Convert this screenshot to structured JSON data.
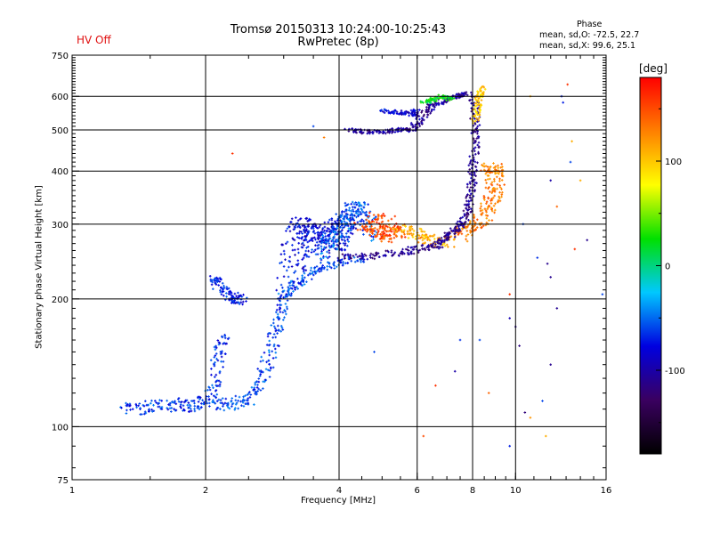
{
  "header": {
    "title_line1": "Tromsø 20150313 10:24:00-10:25:43",
    "title_line2": "RwPretec (8p)",
    "hv_status": "HV Off",
    "stats_heading": "Phase",
    "stats_o": "mean, sd,O: -72.5, 22.7",
    "stats_x": "mean, sd,X:  99.6, 25.1"
  },
  "colorbar": {
    "unit_label": "[deg]",
    "ticks": [
      {
        "value": 100,
        "label": "100"
      },
      {
        "value": 0,
        "label": "0"
      },
      {
        "value": -100,
        "label": "-100"
      }
    ],
    "range": [
      -180,
      180
    ],
    "colors": [
      "#000000",
      "#3a0060",
      "#0000e0",
      "#00c8ff",
      "#00e000",
      "#ffff00",
      "#ff8000",
      "#ff0000"
    ]
  },
  "chart_data": {
    "type": "scatter",
    "title": "Tromsø 20150313 10:24:00-10:25:43",
    "subtitle": "RwPretec (8p)",
    "xlabel": "Frequency [MHz]",
    "ylabel": "Stationary phase Virtual Height [km]",
    "x_scale": "log",
    "y_scale": "log",
    "xlim": [
      1,
      16
    ],
    "ylim": [
      75,
      750
    ],
    "grid": true,
    "x_ticks": [
      {
        "value": 1,
        "label": "1"
      },
      {
        "value": 2,
        "label": "2"
      },
      {
        "value": 4,
        "label": "4"
      },
      {
        "value": 6,
        "label": "6"
      },
      {
        "value": 8,
        "label": "8"
      },
      {
        "value": 10,
        "label": "10"
      },
      {
        "value": 16,
        "label": "16"
      }
    ],
    "x_gridlines": [
      2,
      4,
      6,
      8,
      10
    ],
    "y_ticks": [
      {
        "value": 75,
        "label": "75"
      },
      {
        "value": 100,
        "label": "100"
      },
      {
        "value": 200,
        "label": "200"
      },
      {
        "value": 300,
        "label": "300"
      },
      {
        "value": 400,
        "label": "400"
      },
      {
        "value": 500,
        "label": "500"
      },
      {
        "value": 600,
        "label": "600"
      },
      {
        "value": 750,
        "label": "750"
      }
    ],
    "y_gridlines": [
      100,
      200,
      300,
      400,
      500,
      600
    ],
    "color_by": "phase [deg]",
    "traces": [
      {
        "phase": -65,
        "spread_f": 0.035,
        "spread_h": 4,
        "points": [
          [
            1.3,
            110
          ],
          [
            1.45,
            111
          ],
          [
            1.6,
            112
          ],
          [
            1.75,
            113
          ],
          [
            1.9,
            112
          ],
          [
            2.05,
            115
          ],
          [
            2.1,
            125
          ],
          [
            2.15,
            150
          ],
          [
            2.2,
            165
          ]
        ]
      },
      {
        "phase": -60,
        "spread_f": 0.035,
        "spread_h": 4,
        "points": [
          [
            2.1,
            112
          ],
          [
            2.3,
            113
          ],
          [
            2.5,
            116
          ],
          [
            2.65,
            125
          ],
          [
            2.75,
            140
          ],
          [
            2.85,
            160
          ],
          [
            2.95,
            180
          ],
          [
            3.0,
            200
          ],
          [
            3.1,
            212
          ],
          [
            3.3,
            222
          ],
          [
            3.6,
            235
          ],
          [
            4.0,
            245
          ],
          [
            4.5,
            248
          ]
        ]
      },
      {
        "phase": -78,
        "spread_f": 0.07,
        "spread_h": 12,
        "points": [
          [
            3.1,
            220
          ],
          [
            3.15,
            245
          ],
          [
            3.2,
            270
          ],
          [
            3.25,
            295
          ],
          [
            3.3,
            300
          ],
          [
            3.4,
            280
          ],
          [
            3.5,
            260
          ],
          [
            3.6,
            285
          ],
          [
            3.7,
            300
          ],
          [
            3.8,
            275
          ],
          [
            3.9,
            265
          ],
          [
            4.0,
            285
          ],
          [
            4.1,
            300
          ],
          [
            4.2,
            310
          ]
        ]
      },
      {
        "phase": -55,
        "spread_f": 0.05,
        "spread_h": 12,
        "points": [
          [
            3.6,
            245
          ],
          [
            3.8,
            268
          ],
          [
            4.0,
            282
          ],
          [
            4.1,
            300
          ],
          [
            4.2,
            315
          ],
          [
            4.3,
            328
          ],
          [
            4.45,
            325
          ],
          [
            4.6,
            310
          ],
          [
            4.8,
            282
          ]
        ]
      },
      {
        "phase": 150,
        "spread_f": 0.06,
        "spread_h": 10,
        "points": [
          [
            4.6,
            298
          ],
          [
            4.8,
            290
          ],
          [
            5.0,
            285
          ],
          [
            5.2,
            280
          ],
          [
            5.4,
            290
          ],
          [
            5.0,
            310
          ],
          [
            4.8,
            305
          ]
        ]
      },
      {
        "phase": 110,
        "spread_f": 0.06,
        "spread_h": 8,
        "points": [
          [
            5.5,
            292
          ],
          [
            5.8,
            290
          ],
          [
            6.2,
            280
          ],
          [
            6.6,
            275
          ],
          [
            7.0,
            272
          ]
        ]
      },
      {
        "phase": 130,
        "spread_f": 0.05,
        "spread_h": 8,
        "points": [
          [
            7.4,
            280
          ],
          [
            7.8,
            290
          ],
          [
            8.2,
            300
          ],
          [
            8.6,
            320
          ],
          [
            8.8,
            340
          ],
          [
            9.0,
            360
          ],
          [
            9.0,
            390
          ],
          [
            8.9,
            410
          ],
          [
            8.6,
            400
          ]
        ]
      },
      {
        "phase": -108,
        "spread_f": 0.025,
        "spread_h": 5,
        "points": [
          [
            4.0,
            250
          ],
          [
            4.6,
            252
          ],
          [
            5.2,
            255
          ],
          [
            5.8,
            260
          ],
          [
            6.4,
            265
          ],
          [
            6.8,
            270
          ],
          [
            7.0,
            280
          ],
          [
            7.3,
            290
          ],
          [
            7.6,
            300
          ],
          [
            7.8,
            320
          ],
          [
            7.9,
            345
          ],
          [
            8.0,
            380
          ],
          [
            8.05,
            420
          ],
          [
            8.1,
            480
          ],
          [
            8.1,
            540
          ],
          [
            8.05,
            600
          ]
        ]
      },
      {
        "phase": -105,
        "spread_f": 0.03,
        "spread_h": 5,
        "points": [
          [
            4.2,
            500
          ],
          [
            4.6,
            495
          ],
          [
            5.0,
            495
          ],
          [
            5.4,
            500
          ],
          [
            5.8,
            500
          ],
          [
            6.0,
            520
          ],
          [
            6.3,
            555
          ],
          [
            6.6,
            575
          ],
          [
            7.0,
            590
          ],
          [
            7.4,
            600
          ],
          [
            7.8,
            610
          ]
        ]
      },
      {
        "phase": -85,
        "spread_f": 0.02,
        "spread_h": 6,
        "points": [
          [
            5.0,
            555
          ],
          [
            5.4,
            550
          ],
          [
            5.8,
            545
          ],
          [
            6.0,
            555
          ]
        ]
      },
      {
        "phase": 20,
        "spread_f": 0.02,
        "spread_h": 6,
        "points": [
          [
            6.2,
            580
          ],
          [
            6.5,
            590
          ],
          [
            6.8,
            600
          ],
          [
            7.2,
            590
          ]
        ]
      },
      {
        "phase": 100,
        "spread_f": 0.02,
        "spread_h": 8,
        "points": [
          [
            8.1,
            520
          ],
          [
            8.2,
            560
          ],
          [
            8.3,
            600
          ],
          [
            8.4,
            630
          ]
        ]
      },
      {
        "phase": -70,
        "spread_f": 0.03,
        "spread_h": 6,
        "points": [
          [
            2.05,
            225
          ],
          [
            2.15,
            215
          ],
          [
            2.25,
            205
          ],
          [
            2.35,
            200
          ],
          [
            2.45,
            198
          ]
        ]
      }
    ],
    "scatter_points": [
      [
        2.3,
        440,
        160
      ],
      [
        3.5,
        510,
        -60
      ],
      [
        3.7,
        480,
        130
      ],
      [
        4.8,
        150,
        -60
      ],
      [
        6.2,
        95,
        150
      ],
      [
        6.6,
        125,
        160
      ],
      [
        7.3,
        135,
        -100
      ],
      [
        7.5,
        160,
        -65
      ],
      [
        8.3,
        160,
        -60
      ],
      [
        8.7,
        120,
        140
      ],
      [
        9.7,
        90,
        -70
      ],
      [
        9.7,
        180,
        -95
      ],
      [
        10.0,
        172,
        -110
      ],
      [
        10.2,
        155,
        -115
      ],
      [
        10.5,
        108,
        -118
      ],
      [
        10.8,
        105,
        120
      ],
      [
        11.5,
        115,
        -60
      ],
      [
        11.7,
        95,
        110
      ],
      [
        11.2,
        250,
        -65
      ],
      [
        11.8,
        242,
        -110
      ],
      [
        12.0,
        225,
        -110
      ],
      [
        12.4,
        190,
        -108
      ],
      [
        12.0,
        380,
        -100
      ],
      [
        12.4,
        330,
        140
      ],
      [
        13.3,
        420,
        -60
      ],
      [
        13.4,
        470,
        110
      ],
      [
        12.8,
        580,
        -70
      ],
      [
        13.1,
        640,
        160
      ],
      [
        14.5,
        275,
        -110
      ],
      [
        15.7,
        205,
        -60
      ],
      [
        13.6,
        262,
        160
      ],
      [
        12.0,
        140,
        -110
      ],
      [
        12.7,
        600,
        -70
      ],
      [
        10.4,
        300,
        -60
      ],
      [
        9.7,
        205,
        160
      ],
      [
        14.0,
        380,
        110
      ],
      [
        10.8,
        600,
        110
      ]
    ]
  }
}
